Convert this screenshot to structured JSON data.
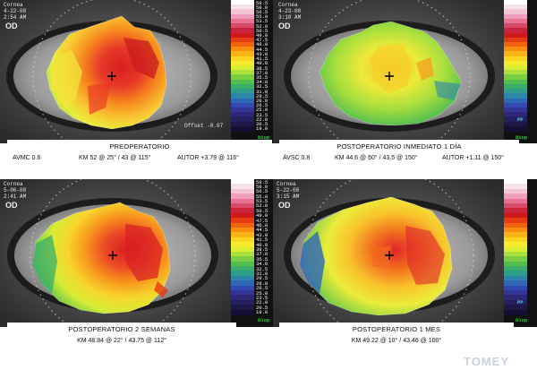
{
  "panels": [
    {
      "id": "preop",
      "caption": "PREOPERATORIO",
      "avsc": "AVMC 0.6",
      "km": "KM 52 @ 25° / 43 @ 115°",
      "autor": "AUTOR +3.79 @ 116°",
      "corner_text": [
        "Cornea",
        "OD",
        "4-22-08",
        "2:54 AM"
      ],
      "offset_text": "Offset -0.07",
      "unit_label": "Diop"
    },
    {
      "id": "postop-day1",
      "caption": "POSTOPERATORIO INMEDIATO 1 DÍA",
      "avsc": "AVSC 0.8",
      "km": "KM 44.6 @ 60° / 43.5 @ 150°",
      "autor": "AUTOR +1.11 @ 150°",
      "corner_text": [
        "Cornea",
        "OD",
        "4-23-08",
        "3:10 AM"
      ],
      "offset_text": "",
      "unit_label": "Diop"
    },
    {
      "id": "postop-2weeks",
      "caption": "POSTOPERATORIO 2 SEMANAS",
      "km": "KM 48.84 @ 22° / 43.75 @ 112°",
      "corner_text": [
        "Cornea",
        "OD",
        "5-06-08",
        "2:41 AM"
      ],
      "unit_label": "Diop"
    },
    {
      "id": "postop-1month",
      "caption": "POSTOPERATORIO 1 MES",
      "km": "KM 49.22 @ 10° / 43.46 @ 100°",
      "corner_text": [
        "Cornea",
        "OD",
        "5-22-08",
        "3:15 AM"
      ],
      "unit_label": "Diop"
    }
  ],
  "eye_label": "OD",
  "color_scale": {
    "labels": [
      "59.5",
      "58.0",
      "56.5",
      "55.0",
      "53.5",
      "52.0",
      "50.5",
      "49.0",
      "47.5",
      "46.0",
      "44.5",
      "43.0",
      "41.5",
      "40.0",
      "38.5",
      "37.0",
      "35.5",
      "34.0",
      "32.5",
      "31.0",
      "29.5",
      "28.0",
      "26.5",
      "25.0",
      "23.5",
      "22.0",
      "20.5",
      "19.0"
    ],
    "colors": [
      "#ffffff",
      "#f7e3ec",
      "#f2c6d6",
      "#ee9fbb",
      "#e77292",
      "#d94a6a",
      "#c8253d",
      "#d11818",
      "#e53a12",
      "#f2630f",
      "#f98e0e",
      "#fbb413",
      "#fcd521",
      "#f4ec2b",
      "#d9ee34",
      "#abe13c",
      "#7bce44",
      "#53bd4f",
      "#3aad6a",
      "#2e9d8c",
      "#2c86aa",
      "#2f66b8",
      "#3249b0",
      "#333599",
      "#2e2878",
      "#26205c",
      "#1d1845",
      "#141033"
    ]
  },
  "scale_tags": {
    "pp": "PP",
    "diop": "Diop"
  },
  "logo_text": "TOMEY",
  "colors": {
    "warm": "#e8292b",
    "orange": "#f5801c",
    "yellow": "#f4e84a",
    "green": "#53bd4f",
    "teal": "#2e9d8c",
    "blue": "#2f66b8"
  }
}
